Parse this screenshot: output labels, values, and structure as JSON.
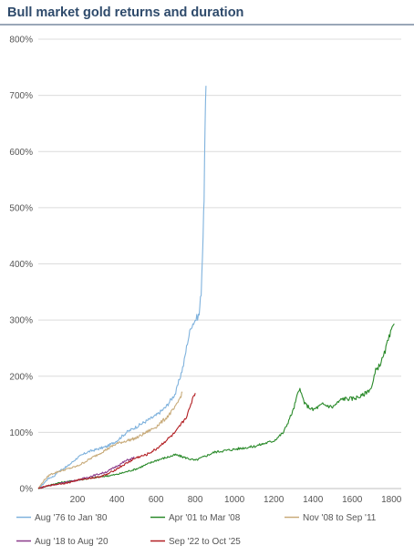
{
  "chart_data": {
    "type": "line",
    "title": "Bull market gold returns and duration",
    "xlabel": "",
    "ylabel": "",
    "xlim": [
      0,
      1850
    ],
    "ylim": [
      0,
      800
    ],
    "x_ticks": [
      200,
      400,
      600,
      800,
      1000,
      1200,
      1400,
      1600,
      1800
    ],
    "x_tick_labels": [
      "200",
      "400",
      "600",
      "800",
      "1000",
      "1200",
      "1400",
      "1600",
      "1800"
    ],
    "y_ticks": [
      0,
      100,
      200,
      300,
      400,
      500,
      600,
      700,
      800
    ],
    "y_tick_labels": [
      "0%",
      "100%",
      "200%",
      "300%",
      "400%",
      "500%",
      "600%",
      "700%",
      "800%"
    ],
    "grid": "horizontal",
    "legend_position": "bottom",
    "series": [
      {
        "name": "Aug '76 to Jan '80",
        "color": "#7fb2dd",
        "points": [
          [
            0,
            0
          ],
          [
            25,
            8
          ],
          [
            50,
            18
          ],
          [
            80,
            22
          ],
          [
            100,
            30
          ],
          [
            150,
            40
          ],
          [
            200,
            55
          ],
          [
            250,
            65
          ],
          [
            300,
            70
          ],
          [
            350,
            75
          ],
          [
            400,
            85
          ],
          [
            450,
            100
          ],
          [
            500,
            110
          ],
          [
            550,
            120
          ],
          [
            600,
            130
          ],
          [
            650,
            145
          ],
          [
            700,
            170
          ],
          [
            720,
            195
          ],
          [
            740,
            220
          ],
          [
            760,
            260
          ],
          [
            780,
            290
          ],
          [
            800,
            300
          ],
          [
            820,
            310
          ],
          [
            830,
            350
          ],
          [
            840,
            450
          ],
          [
            845,
            520
          ],
          [
            850,
            640
          ],
          [
            855,
            717
          ]
        ]
      },
      {
        "name": "Apr '01 to Mar '08",
        "color": "#2a8a2a",
        "points": [
          [
            0,
            0
          ],
          [
            100,
            10
          ],
          [
            200,
            15
          ],
          [
            300,
            20
          ],
          [
            400,
            25
          ],
          [
            500,
            35
          ],
          [
            600,
            50
          ],
          [
            700,
            60
          ],
          [
            800,
            50
          ],
          [
            900,
            65
          ],
          [
            1000,
            70
          ],
          [
            1100,
            75
          ],
          [
            1200,
            85
          ],
          [
            1250,
            100
          ],
          [
            1300,
            140
          ],
          [
            1330,
            178
          ],
          [
            1360,
            150
          ],
          [
            1400,
            140
          ],
          [
            1450,
            150
          ],
          [
            1500,
            145
          ],
          [
            1550,
            160
          ],
          [
            1600,
            160
          ],
          [
            1650,
            165
          ],
          [
            1700,
            180
          ],
          [
            1720,
            210
          ],
          [
            1740,
            220
          ],
          [
            1760,
            235
          ],
          [
            1780,
            260
          ],
          [
            1800,
            280
          ],
          [
            1815,
            293
          ]
        ]
      },
      {
        "name": "Nov '08 to Sep '11",
        "color": "#c8ab7a",
        "points": [
          [
            0,
            0
          ],
          [
            30,
            15
          ],
          [
            60,
            25
          ],
          [
            100,
            30
          ],
          [
            150,
            35
          ],
          [
            200,
            40
          ],
          [
            250,
            50
          ],
          [
            300,
            60
          ],
          [
            350,
            70
          ],
          [
            400,
            80
          ],
          [
            450,
            85
          ],
          [
            500,
            90
          ],
          [
            550,
            100
          ],
          [
            600,
            110
          ],
          [
            650,
            125
          ],
          [
            700,
            145
          ],
          [
            720,
            160
          ],
          [
            735,
            172
          ]
        ]
      },
      {
        "name": "Aug '18 to Aug '20",
        "color": "#8a3a8a",
        "points": [
          [
            0,
            0
          ],
          [
            50,
            5
          ],
          [
            100,
            8
          ],
          [
            150,
            12
          ],
          [
            200,
            15
          ],
          [
            250,
            20
          ],
          [
            300,
            25
          ],
          [
            350,
            30
          ],
          [
            400,
            40
          ],
          [
            450,
            50
          ],
          [
            490,
            55
          ]
        ]
      },
      {
        "name": "Sep '22 to Oct '25",
        "color": "#b21e22",
        "points": [
          [
            0,
            0
          ],
          [
            50,
            5
          ],
          [
            100,
            8
          ],
          [
            150,
            10
          ],
          [
            200,
            15
          ],
          [
            250,
            18
          ],
          [
            300,
            20
          ],
          [
            350,
            25
          ],
          [
            400,
            35
          ],
          [
            450,
            45
          ],
          [
            500,
            55
          ],
          [
            550,
            60
          ],
          [
            600,
            70
          ],
          [
            650,
            85
          ],
          [
            700,
            100
          ],
          [
            720,
            110
          ],
          [
            750,
            125
          ],
          [
            770,
            140
          ],
          [
            790,
            165
          ],
          [
            800,
            170
          ]
        ]
      }
    ]
  }
}
